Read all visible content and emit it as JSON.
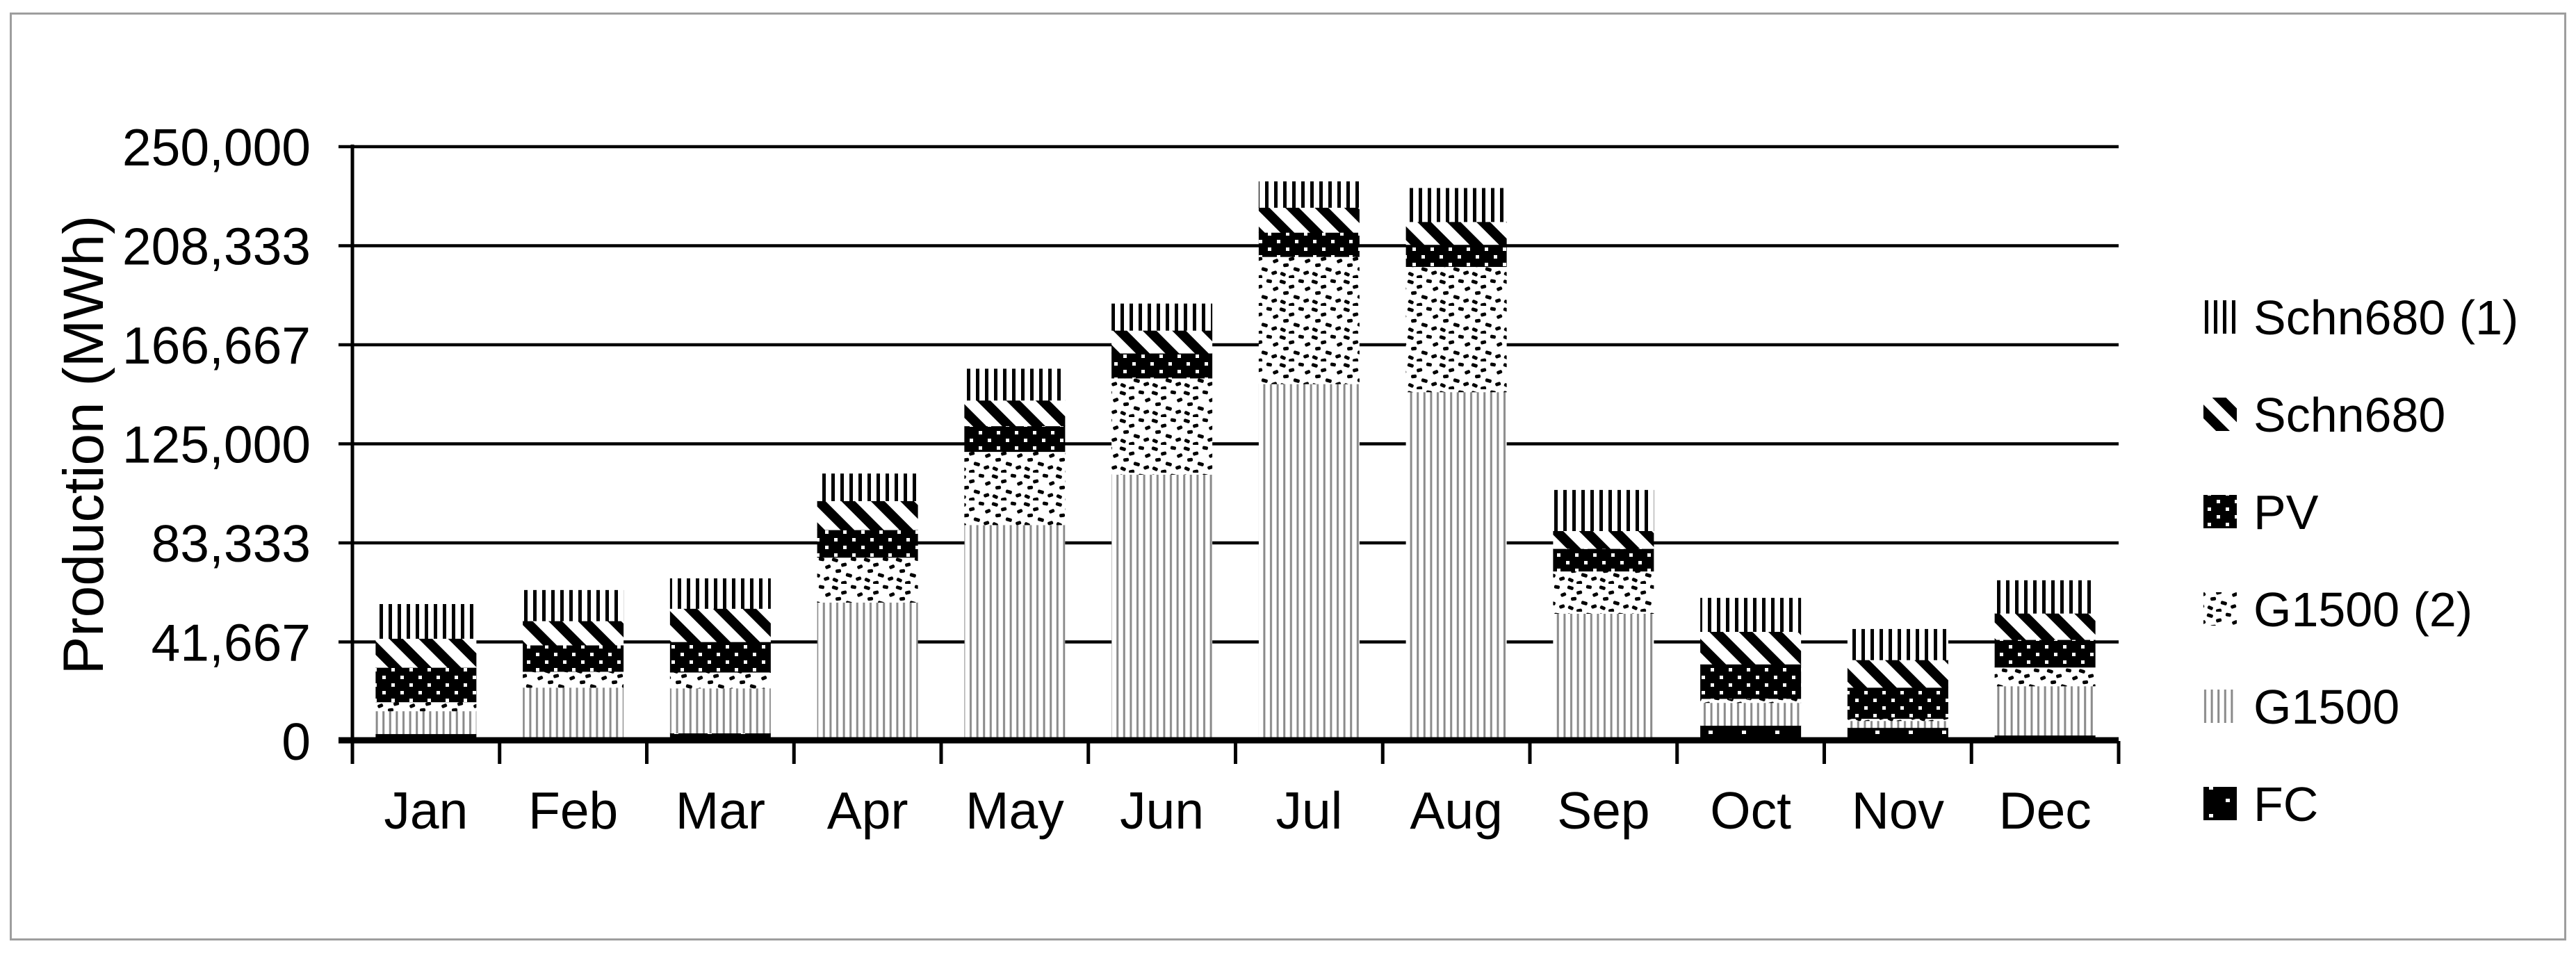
{
  "figure": {
    "border_color": "#9e9e9e",
    "background_color": "#ffffff",
    "text_color": "#000000",
    "gridline_color": "#000000",
    "g1500_line_color": "#8a8a8a"
  },
  "chart_data": {
    "type": "bar",
    "stacked": true,
    "title": "",
    "xlabel": "",
    "ylabel": "Production (MWh)",
    "ylim": [
      0,
      250000
    ],
    "grid": true,
    "legend_position": "right",
    "ytick_values": [
      0,
      41667,
      83333,
      125000,
      166667,
      208333,
      250000
    ],
    "ytick_labels": [
      "0",
      "41,667",
      "83,333",
      "125,000",
      "166,667",
      "208,333",
      "250,000"
    ],
    "categories": [
      "Jan",
      "Feb",
      "Mar",
      "Apr",
      "May",
      "Jun",
      "Jul",
      "Aug",
      "Sep",
      "Oct",
      "Nov",
      "Dec"
    ],
    "series": [
      {
        "name": "FC",
        "pattern": "black-sparse-white-dots",
        "values": [
          3200,
          0,
          3500,
          0,
          0,
          0,
          0,
          0,
          0,
          6700,
          5800,
          2600
        ]
      },
      {
        "name": "G1500",
        "pattern": "thin-vertical-gray-lines",
        "values": [
          9600,
          22700,
          18900,
          58500,
          91100,
          112300,
          150400,
          147000,
          53800,
          9600,
          2900,
          20700
        ]
      },
      {
        "name": "G1500 (2)",
        "pattern": "black-speckle-dashes",
        "values": [
          3800,
          6700,
          6700,
          18900,
          30800,
          40500,
          53500,
          52700,
          17800,
          1700,
          900,
          7900
        ]
      },
      {
        "name": "PV",
        "pattern": "black-white-dot-grid",
        "values": [
          14500,
          11100,
          12800,
          11600,
          10800,
          10500,
          10200,
          9300,
          9500,
          14500,
          13100,
          11600
        ]
      },
      {
        "name": "Schn680",
        "pattern": "wide-diagonal-stripes",
        "values": [
          12200,
          10200,
          14000,
          12200,
          10800,
          9600,
          10500,
          9600,
          7500,
          13700,
          11600,
          11100
        ]
      },
      {
        "name": "Schn680 (1)",
        "pattern": "wide-vertical-bars",
        "values": [
          14300,
          12800,
          12500,
          11300,
          13100,
          11100,
          10800,
          14000,
          17000,
          14000,
          12800,
          13700
        ]
      }
    ],
    "legend_order_top_to_bottom": [
      "Schn680 (1)",
      "Schn680",
      "PV",
      "G1500 (2)",
      "G1500",
      "FC"
    ]
  }
}
